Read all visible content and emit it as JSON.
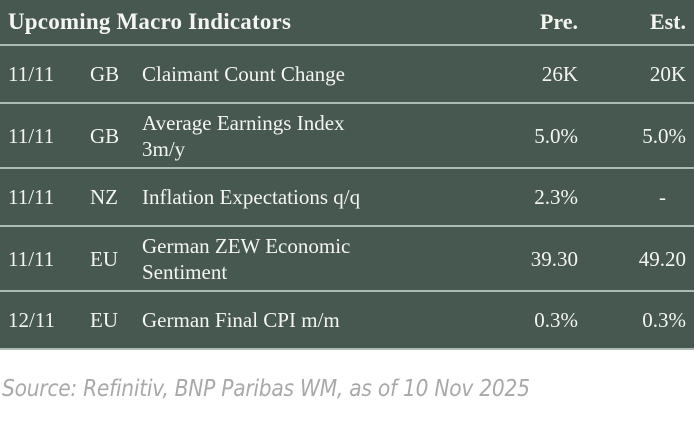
{
  "table": {
    "title": "Upcoming Macro Indicators",
    "columns": {
      "pre": "Pre.",
      "est": "Est."
    },
    "rows": [
      {
        "date": "11/11",
        "country": "GB",
        "indicator": "Claimant Count Change",
        "pre": "26K",
        "est": "20K"
      },
      {
        "date": "11/11",
        "country": "GB",
        "indicator": "Average Earnings Index\n3m/y",
        "pre": "5.0%",
        "est": "5.0%"
      },
      {
        "date": "11/11",
        "country": "NZ",
        "indicator": "Inflation Expectations q/q",
        "pre": "2.3%",
        "est": "-"
      },
      {
        "date": "11/11",
        "country": "EU",
        "indicator": "German ZEW Economic\nSentiment",
        "pre": "39.30",
        "est": "49.20"
      },
      {
        "date": "12/11",
        "country": "EU",
        "indicator": "German Final CPI m/m",
        "pre": "0.3%",
        "est": "0.3%"
      }
    ]
  },
  "footer": {
    "source": "Source: Refinitiv, BNP Paribas WM, as of 10 Nov 2025"
  },
  "colors": {
    "table_bg": "#475850",
    "separator": "#adbcb2",
    "text": "#f4f4f0",
    "source_text": "#a9a9a9",
    "page_bg": "#ffffff"
  }
}
